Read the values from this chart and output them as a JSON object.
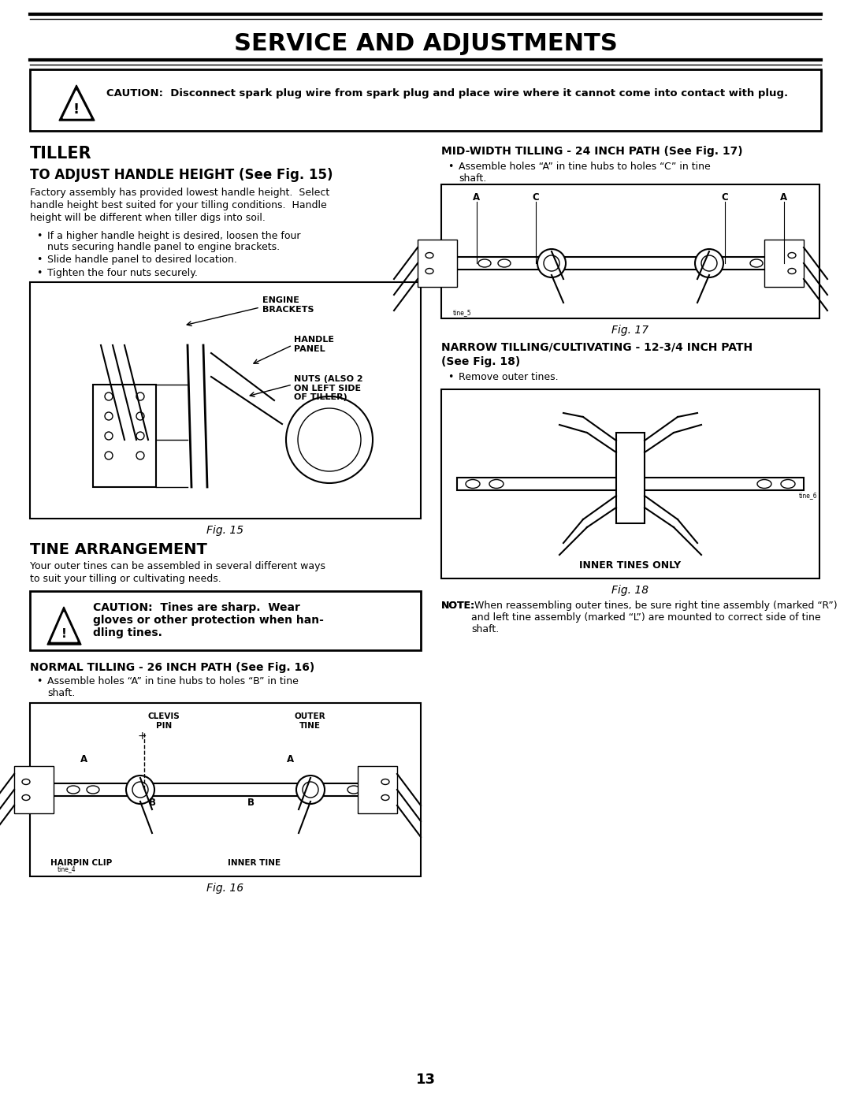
{
  "title": "SERVICE AND ADJUSTMENTS",
  "page_number": "13",
  "bg_color": "#ffffff",
  "caution1_text_bold": "CAUTION:  Disconnect spark plug wire from spark plug and place wire where it cannot come into contact with plug.",
  "section_tiller": "TILLER",
  "subsec1_title": "TO ADJUST HANDLE HEIGHT (See Fig. 15)",
  "subsec1_body_lines": [
    "Factory assembly has provided lowest handle height.  Select",
    "handle height best suited for your tilling conditions.  Handle",
    "height will be different when tiller digs into soil."
  ],
  "subsec1_bullet1": "If a higher handle height is desired, loosen the four",
  "subsec1_bullet1b": "nuts securing handle panel to engine brackets.",
  "subsec1_bullet2": "Slide handle panel to desired location.",
  "subsec1_bullet3": "Tighten the four nuts securely.",
  "fig15_label_engine": "ENGINE\nBRACKETS",
  "fig15_label_handle": "HANDLE\nPANEL",
  "fig15_label_nuts": "NUTS (ALSO 2\nON LEFT SIDE\nOF TILLER)",
  "fig15_caption": "Fig. 15",
  "section_tine": "TINE ARRANGEMENT",
  "tine_body1": "Your outer tines can be assembled in several different ways",
  "tine_body2": "to suit your tilling or cultivating needs.",
  "caution2_line1": "CAUTION:  Tines are sharp.  Wear",
  "caution2_line2": "gloves or other protection when han-",
  "caution2_line3": "dling tines.",
  "normal_title": "NORMAL TILLING - 26 INCH PATH (See Fig. 16)",
  "normal_bullet": "Assemble holes “A” in tine hubs to holes “B” in tine",
  "normal_bullet2": "shaft.",
  "fig16_caption": "Fig. 16",
  "fig16_clevis": "CLEVIS\nPIN",
  "fig16_outer": "OUTER\nTINE",
  "fig16_hairpin": "HAIRPIN CLIP",
  "fig16_inner": "INNER TINE",
  "mid_title": "MID-WIDTH TILLING - 24 INCH PATH (See Fig. 17)",
  "mid_bullet": "Assemble holes “A” in tine hubs to holes “C” in tine",
  "mid_bullet2": "shaft.",
  "fig17_caption": "Fig. 17",
  "narrow_title_line1": "NARROW TILLING/CULTIVATING - 12-3/4 INCH PATH",
  "narrow_title_line2": "(See Fig. 18)",
  "narrow_bullet": "Remove outer tines.",
  "fig18_caption": "Fig. 18",
  "fig18_inner_label": "INNER TINES ONLY",
  "note_bold": "NOTE:",
  "note_text": " When reassembling outer tines, be sure right tine assembly (marked “R”) and left tine assembly (marked “L”) are mounted to correct side of tine shaft."
}
